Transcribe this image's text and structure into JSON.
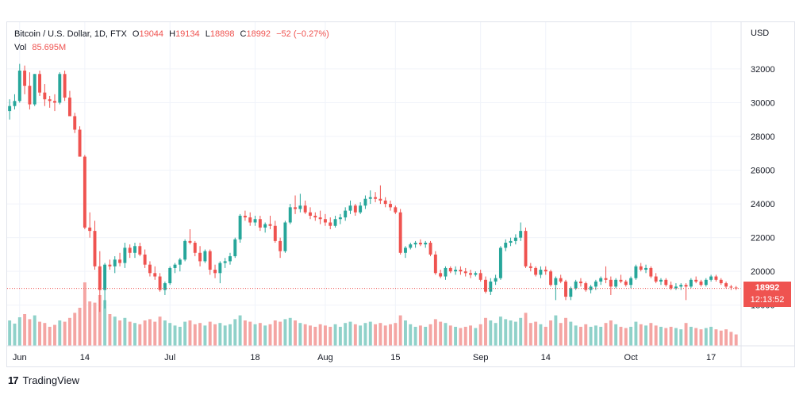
{
  "legend": {
    "symbol": "Bitcoin / U.S. Dollar, 1D, FTX",
    "o_label": "O",
    "o_value": "19044",
    "h_label": "H",
    "h_value": "19134",
    "l_label": "L",
    "l_value": "18898",
    "c_label": "C",
    "c_value": "18992",
    "change": "−52 (−0.27%)",
    "vol_label": "Vol",
    "vol_value": "85.695M"
  },
  "price_tag": {
    "price": "18992",
    "countdown": "12:13:52"
  },
  "brand": {
    "logo": "17",
    "name": "TradingView"
  },
  "colors": {
    "up": "#26a69a",
    "down": "#ef5350",
    "up_vol": "#8fd1c9",
    "down_vol": "#f4a5a3",
    "grid": "#f0f3fa"
  },
  "chart_data": {
    "type": "candlestick",
    "currency": "USD",
    "ylim": [
      17000,
      33500
    ],
    "y_ticks": [
      18000,
      20000,
      22000,
      24000,
      26000,
      28000,
      30000,
      32000
    ],
    "x_ticks": [
      {
        "index": 2,
        "label": "Jun"
      },
      {
        "index": 15,
        "label": "14"
      },
      {
        "index": 32,
        "label": "Jul"
      },
      {
        "index": 49,
        "label": "18"
      },
      {
        "index": 63,
        "label": "Aug"
      },
      {
        "index": 77,
        "label": "15"
      },
      {
        "index": 94,
        "label": "Sep"
      },
      {
        "index": 107,
        "label": "14"
      },
      {
        "index": 124,
        "label": "Oct"
      },
      {
        "index": 140,
        "label": "17"
      }
    ],
    "candles": [
      [
        29500,
        30200,
        29000,
        29800,
        40
      ],
      [
        29800,
        30500,
        29600,
        30100,
        35
      ],
      [
        30100,
        32300,
        30000,
        31900,
        45
      ],
      [
        31900,
        32200,
        30500,
        31000,
        50
      ],
      [
        31000,
        31800,
        29600,
        29900,
        42
      ],
      [
        29900,
        31700,
        29800,
        31700,
        48
      ],
      [
        31700,
        31900,
        30400,
        30600,
        38
      ],
      [
        30600,
        31100,
        29800,
        30200,
        36
      ],
      [
        30200,
        30400,
        29700,
        30100,
        30
      ],
      [
        30100,
        30500,
        29500,
        30000,
        33
      ],
      [
        30000,
        31800,
        29900,
        31700,
        40
      ],
      [
        31700,
        31900,
        30100,
        30300,
        38
      ],
      [
        30300,
        30700,
        29200,
        29200,
        44
      ],
      [
        29200,
        29400,
        28200,
        28400,
        52
      ],
      [
        28400,
        28600,
        26800,
        26800,
        60
      ],
      [
        26800,
        26900,
        22500,
        22600,
        100
      ],
      [
        22600,
        23500,
        22000,
        22400,
        70
      ],
      [
        22400,
        23000,
        20100,
        20300,
        68
      ],
      [
        20300,
        21200,
        17600,
        18900,
        80
      ],
      [
        18900,
        20500,
        17800,
        20400,
        72
      ],
      [
        20400,
        20700,
        20100,
        20300,
        50
      ],
      [
        20300,
        20900,
        19900,
        20700,
        46
      ],
      [
        20700,
        21100,
        20300,
        20500,
        40
      ],
      [
        20500,
        21700,
        20200,
        21400,
        44
      ],
      [
        21400,
        21600,
        20800,
        21100,
        38
      ],
      [
        21100,
        21700,
        20800,
        21500,
        36
      ],
      [
        21500,
        21700,
        20900,
        21000,
        34
      ],
      [
        21000,
        21300,
        20200,
        20400,
        40
      ],
      [
        20400,
        20600,
        19700,
        19900,
        42
      ],
      [
        19900,
        20300,
        19500,
        19700,
        38
      ],
      [
        19700,
        19900,
        18800,
        18900,
        46
      ],
      [
        18900,
        19400,
        18600,
        19300,
        40
      ],
      [
        19300,
        20300,
        19200,
        20200,
        36
      ],
      [
        20200,
        20500,
        19900,
        20400,
        32
      ],
      [
        20400,
        20800,
        20000,
        20700,
        30
      ],
      [
        20700,
        21900,
        20600,
        21800,
        38
      ],
      [
        21800,
        22500,
        21600,
        21700,
        40
      ],
      [
        21700,
        21800,
        20900,
        21100,
        34
      ],
      [
        21100,
        21500,
        20300,
        20600,
        36
      ],
      [
        20600,
        21300,
        20500,
        21200,
        32
      ],
      [
        21200,
        21300,
        19800,
        20100,
        38
      ],
      [
        20100,
        20400,
        19600,
        19900,
        34
      ],
      [
        19900,
        20600,
        19300,
        20500,
        36
      ],
      [
        20500,
        20800,
        20200,
        20600,
        32
      ],
      [
        20600,
        21100,
        20400,
        20900,
        34
      ],
      [
        20900,
        22000,
        20800,
        21900,
        42
      ],
      [
        21900,
        23400,
        21700,
        23300,
        48
      ],
      [
        23300,
        23600,
        23000,
        23200,
        40
      ],
      [
        23200,
        23500,
        22700,
        22900,
        38
      ],
      [
        22900,
        23300,
        22700,
        23100,
        34
      ],
      [
        23100,
        23300,
        22400,
        22600,
        36
      ],
      [
        22600,
        22900,
        22300,
        22800,
        32
      ],
      [
        22800,
        23300,
        22500,
        22700,
        34
      ],
      [
        22700,
        23000,
        21700,
        21800,
        40
      ],
      [
        21800,
        22000,
        20800,
        21200,
        38
      ],
      [
        21200,
        23000,
        21100,
        22900,
        42
      ],
      [
        22900,
        24000,
        22800,
        23800,
        44
      ],
      [
        23800,
        24500,
        23400,
        23700,
        40
      ],
      [
        23700,
        24600,
        23500,
        23900,
        36
      ],
      [
        23900,
        24200,
        23400,
        23500,
        34
      ],
      [
        23500,
        23800,
        23100,
        23300,
        32
      ],
      [
        23300,
        23500,
        23000,
        23200,
        30
      ],
      [
        23200,
        23600,
        22800,
        23100,
        34
      ],
      [
        23100,
        23400,
        22700,
        22900,
        32
      ],
      [
        22900,
        23200,
        22500,
        22700,
        30
      ],
      [
        22700,
        23300,
        22600,
        23100,
        34
      ],
      [
        23100,
        23400,
        22800,
        23200,
        30
      ],
      [
        23200,
        23800,
        23000,
        23600,
        36
      ],
      [
        23600,
        24200,
        23400,
        23900,
        38
      ],
      [
        23900,
        24000,
        23300,
        23500,
        34
      ],
      [
        23500,
        24100,
        23400,
        23900,
        32
      ],
      [
        23900,
        24500,
        23700,
        24300,
        36
      ],
      [
        24300,
        24800,
        24000,
        24400,
        38
      ],
      [
        24400,
        24700,
        24100,
        24300,
        34
      ],
      [
        24300,
        25100,
        24000,
        24200,
        36
      ],
      [
        24200,
        24400,
        23800,
        24000,
        32
      ],
      [
        24000,
        24200,
        23600,
        23800,
        34
      ],
      [
        23800,
        23900,
        23400,
        23500,
        36
      ],
      [
        23500,
        23700,
        21000,
        21100,
        48
      ],
      [
        21100,
        21500,
        20800,
        21400,
        40
      ],
      [
        21400,
        21700,
        21300,
        21600,
        34
      ],
      [
        21600,
        21800,
        21400,
        21700,
        30
      ],
      [
        21700,
        21900,
        21500,
        21600,
        32
      ],
      [
        21600,
        21800,
        21400,
        21700,
        30
      ],
      [
        21700,
        21800,
        20900,
        21000,
        34
      ],
      [
        21000,
        21200,
        19800,
        19900,
        42
      ],
      [
        19900,
        20100,
        19600,
        19700,
        38
      ],
      [
        19700,
        20300,
        19500,
        20200,
        36
      ],
      [
        20200,
        20300,
        19900,
        20000,
        32
      ],
      [
        20000,
        20300,
        19800,
        20100,
        30
      ],
      [
        20100,
        20300,
        19800,
        20000,
        28
      ],
      [
        20000,
        20200,
        19700,
        19900,
        30
      ],
      [
        19900,
        20100,
        19600,
        19800,
        32
      ],
      [
        19800,
        20000,
        19700,
        19900,
        28
      ],
      [
        19900,
        20100,
        19400,
        19500,
        34
      ],
      [
        19500,
        19700,
        18700,
        18800,
        44
      ],
      [
        18800,
        19600,
        18600,
        19400,
        40
      ],
      [
        19400,
        19800,
        19200,
        19600,
        36
      ],
      [
        19600,
        21500,
        19500,
        21400,
        46
      ],
      [
        21400,
        21900,
        21200,
        21700,
        42
      ],
      [
        21700,
        22000,
        21500,
        21800,
        40
      ],
      [
        21800,
        22200,
        21600,
        22000,
        38
      ],
      [
        22000,
        22900,
        21800,
        22400,
        44
      ],
      [
        22400,
        22600,
        20200,
        20300,
        52
      ],
      [
        20300,
        20500,
        20000,
        20200,
        36
      ],
      [
        20200,
        20300,
        19700,
        19800,
        38
      ],
      [
        19800,
        20300,
        19600,
        20100,
        34
      ],
      [
        20100,
        20300,
        19800,
        20000,
        30
      ],
      [
        20000,
        20100,
        19100,
        19200,
        40
      ],
      [
        19200,
        19700,
        18300,
        19600,
        48
      ],
      [
        19600,
        19800,
        19300,
        19400,
        36
      ],
      [
        19400,
        19500,
        18300,
        18500,
        44
      ],
      [
        18500,
        19100,
        18300,
        19000,
        38
      ],
      [
        19000,
        19500,
        18900,
        19400,
        32
      ],
      [
        19400,
        19600,
        19100,
        19300,
        30
      ],
      [
        19300,
        19400,
        18800,
        18900,
        34
      ],
      [
        18900,
        19200,
        18700,
        19100,
        30
      ],
      [
        19100,
        19500,
        18900,
        19400,
        32
      ],
      [
        19400,
        19700,
        19200,
        19600,
        30
      ],
      [
        19600,
        20300,
        19300,
        19500,
        36
      ],
      [
        19500,
        19700,
        18600,
        19100,
        40
      ],
      [
        19100,
        19600,
        19000,
        19500,
        34
      ],
      [
        19500,
        19800,
        19300,
        19400,
        30
      ],
      [
        19400,
        19500,
        19100,
        19200,
        28
      ],
      [
        19200,
        19700,
        19000,
        19600,
        30
      ],
      [
        19600,
        20400,
        19500,
        20300,
        38
      ],
      [
        20300,
        20500,
        20000,
        20100,
        34
      ],
      [
        20100,
        20400,
        19900,
        20200,
        32
      ],
      [
        20200,
        20300,
        19600,
        19700,
        36
      ],
      [
        19700,
        19900,
        19300,
        19400,
        32
      ],
      [
        19400,
        19600,
        19200,
        19500,
        30
      ],
      [
        19500,
        19600,
        19100,
        19200,
        28
      ],
      [
        19200,
        19400,
        18900,
        19000,
        30
      ],
      [
        19000,
        19300,
        18900,
        19100,
        28
      ],
      [
        19100,
        19300,
        18900,
        19200,
        26
      ],
      [
        19200,
        19300,
        18300,
        19100,
        36
      ],
      [
        19100,
        19600,
        19000,
        19500,
        30
      ],
      [
        19500,
        19700,
        19300,
        19400,
        28
      ],
      [
        19400,
        19500,
        19100,
        19200,
        26
      ],
      [
        19200,
        19600,
        19100,
        19500,
        28
      ],
      [
        19500,
        19800,
        19400,
        19700,
        30
      ],
      [
        19700,
        19800,
        19400,
        19500,
        26
      ],
      [
        19500,
        19600,
        19200,
        19300,
        24
      ],
      [
        19300,
        19400,
        19000,
        19100,
        26
      ],
      [
        19100,
        19200,
        18900,
        19044,
        22
      ],
      [
        19044,
        19134,
        18898,
        18992,
        18
      ]
    ]
  }
}
